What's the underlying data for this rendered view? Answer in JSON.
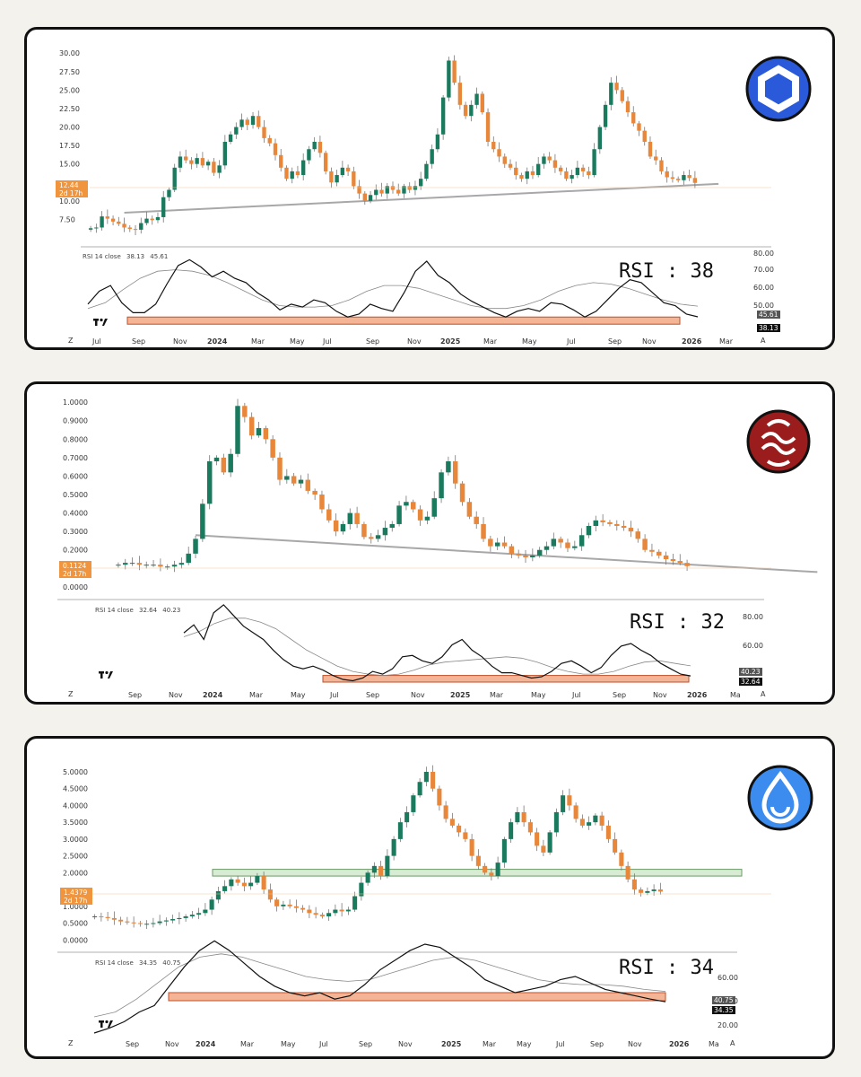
{
  "colors": {
    "up": "#1a7a5e",
    "down": "#e8863a",
    "rsi_band": "#f3b596",
    "rsi_band_stroke": "#c0502a",
    "trend": "#a8a8a8",
    "price_tag": "#f0953d",
    "zone": "#d8ecd4"
  },
  "panels": [
    {
      "coin_icon": "chainlink-hexagon-icon",
      "icon_colors": {
        "bg": "#2a5ada",
        "fg": "#ffffff"
      },
      "price_axis_ticks": [
        "30.00",
        "27.50",
        "25.00",
        "22.50",
        "20.00",
        "17.50",
        "15.00",
        "10.00",
        "7.50"
      ],
      "last_price_tag": {
        "price": "12.44",
        "time": "2d 17h"
      },
      "rsi_header": {
        "label": "RSI 14 close",
        "value1": "38.13",
        "value2": "45.61"
      },
      "rsi_axis_ticks": [
        "80.00",
        "70.00",
        "60.00",
        "50.00"
      ],
      "rsi_tags": {
        "ma": "45.61",
        "rsi": "38.13"
      },
      "rsi_annotation": "RSI : 38",
      "x_ticks": [
        "Jul",
        "Sep",
        "Nov",
        "2024",
        "Mar",
        "May",
        "Jul",
        "Sep",
        "Nov",
        "2025",
        "Mar",
        "May",
        "Jul",
        "Sep",
        "Nov",
        "2026",
        "Mar"
      ],
      "x_bold": [
        "2024",
        "2025",
        "2026"
      ],
      "corner_left": "Z",
      "corner_right": "A"
    },
    {
      "coin_icon": "sei-waves-icon",
      "icon_colors": {
        "bg": "#9b1c1c",
        "fg": "#ffffff"
      },
      "price_axis_ticks": [
        "1.0000",
        "0.9000",
        "0.8000",
        "0.7000",
        "0.6000",
        "0.5000",
        "0.4000",
        "0.3000",
        "0.2000",
        "0.0000"
      ],
      "last_price_tag": {
        "price": "0.1124",
        "time": "2d 17h"
      },
      "rsi_header": {
        "label": "RSI 14 close",
        "value1": "32.64",
        "value2": "40.23"
      },
      "rsi_axis_ticks": [
        "80.00",
        "60.00"
      ],
      "rsi_tags": {
        "ma": "40.23",
        "rsi": "32.64"
      },
      "rsi_annotation": "RSI : 32",
      "x_ticks": [
        "Sep",
        "Nov",
        "2024",
        "Mar",
        "May",
        "Jul",
        "Sep",
        "Nov",
        "2025",
        "Mar",
        "May",
        "Jul",
        "Sep",
        "Nov",
        "2026",
        "Ma"
      ],
      "x_bold": [
        "2024",
        "2025",
        "2026"
      ],
      "corner_left": "Z",
      "corner_right": "A"
    },
    {
      "coin_icon": "sui-droplet-icon",
      "icon_colors": {
        "bg": "#3c8cf0",
        "fg": "#ffffff"
      },
      "price_axis_ticks": [
        "5.0000",
        "4.5000",
        "4.0000",
        "3.5000",
        "3.0000",
        "2.5000",
        "2.0000",
        "1.0000",
        "0.5000",
        "0.0000"
      ],
      "last_price_tag": {
        "price": "1.4379",
        "time": "2d 17h"
      },
      "rsi_header": {
        "label": "RSI 14 close",
        "value1": "34.35",
        "value2": "40.75"
      },
      "rsi_axis_ticks": [
        "60.00",
        "40.00",
        "20.00"
      ],
      "rsi_axis_top_partial": "60.00",
      "rsi_tags": {
        "ma": "40.75",
        "rsi": "34.35"
      },
      "rsi_annotation": "RSI : 34",
      "x_ticks": [
        "Sep",
        "Nov",
        "2024",
        "Mar",
        "May",
        "Jul",
        "Sep",
        "Nov",
        "2025",
        "Mar",
        "May",
        "Jul",
        "Sep",
        "Nov",
        "2026",
        "Ma"
      ],
      "x_bold": [
        "2024",
        "2025",
        "2026"
      ],
      "corner_left": "Z",
      "corner_right": "A"
    }
  ],
  "chart_data": [
    {
      "type": "candlestick",
      "y_ticks": [
        7.5,
        10,
        12.5,
        15,
        17.5,
        20,
        22.5,
        25,
        27.5,
        30
      ],
      "ylim": [
        5,
        31
      ],
      "close_series": [
        6.3,
        6.4,
        7.9,
        7.6,
        7.2,
        6.9,
        6.4,
        6.2,
        6.1,
        7.0,
        7.6,
        7.4,
        7.8,
        10.5,
        11.5,
        14.5,
        16.0,
        15.5,
        15.0,
        15.8,
        14.8,
        15.3,
        13.8,
        14.8,
        18.0,
        19.0,
        20.0,
        21.0,
        20.3,
        21.5,
        20.0,
        18.5,
        17.8,
        16.2,
        14.5,
        13.0,
        14.0,
        13.5,
        15.5,
        17.0,
        18.0,
        16.5,
        14.0,
        12.5,
        13.5,
        14.5,
        14.0,
        12.0,
        11.0,
        10.0,
        10.8,
        11.5,
        11.0,
        12.0,
        11.5,
        11.0,
        12.0,
        11.5,
        12.0,
        13.0,
        15.0,
        17.0,
        19.0,
        24.0,
        29.0,
        26.0,
        23.0,
        21.5,
        23.0,
        24.5,
        22.0,
        18.0,
        17.0,
        16.0,
        15.0,
        14.5,
        13.5,
        13.0,
        14.0,
        13.5,
        15.0,
        16.0,
        15.5,
        14.5,
        14.0,
        13.0,
        13.5,
        14.5,
        14.0,
        13.5,
        17.0,
        20.0,
        23.0,
        26.0,
        25.0,
        23.5,
        22.0,
        20.5,
        19.5,
        18.0,
        16.0,
        15.5,
        14.0,
        13.2,
        13.0,
        12.8,
        13.5,
        13.1,
        12.44
      ],
      "trendline": [
        [
          6,
          8.4
        ],
        [
          109,
          12.3
        ]
      ],
      "rsi": [
        47,
        56,
        60,
        48,
        41,
        41,
        47,
        61,
        74,
        78,
        73,
        66,
        70,
        65,
        62,
        55,
        50,
        43,
        47,
        45,
        50,
        48,
        42,
        38,
        40,
        47,
        44,
        42,
        55,
        70,
        77,
        67,
        62,
        54,
        49,
        45,
        41,
        38,
        42,
        44,
        42,
        48,
        47,
        43,
        38,
        42,
        50,
        58,
        64,
        62,
        55,
        48,
        46,
        40,
        38.13
      ],
      "rsi_ma": [
        44,
        48,
        57,
        65,
        70,
        71,
        70,
        67,
        62,
        56,
        50,
        46,
        45,
        45,
        46,
        50,
        56,
        60,
        60,
        58,
        54,
        50,
        46,
        44,
        44,
        46,
        50,
        56,
        60,
        62,
        61,
        58,
        54,
        50,
        47,
        45.61
      ],
      "rsi_ylim": [
        30,
        82
      ],
      "rsi_oversold_band": [
        33,
        38
      ]
    },
    {
      "type": "candlestick",
      "y_ticks": [
        0,
        0.2,
        0.3,
        0.4,
        0.5,
        0.6,
        0.7,
        0.8,
        0.9,
        1.0
      ],
      "ylim": [
        -0.02,
        1.03
      ],
      "close_series": [
        0.12,
        0.13,
        0.13,
        0.12,
        0.12,
        0.12,
        0.11,
        0.11,
        0.12,
        0.13,
        0.18,
        0.26,
        0.45,
        0.68,
        0.7,
        0.62,
        0.72,
        0.98,
        0.92,
        0.82,
        0.86,
        0.8,
        0.7,
        0.58,
        0.6,
        0.56,
        0.58,
        0.52,
        0.5,
        0.42,
        0.36,
        0.3,
        0.34,
        0.4,
        0.34,
        0.27,
        0.26,
        0.28,
        0.32,
        0.34,
        0.44,
        0.46,
        0.42,
        0.36,
        0.38,
        0.48,
        0.62,
        0.68,
        0.56,
        0.46,
        0.38,
        0.34,
        0.26,
        0.22,
        0.24,
        0.22,
        0.18,
        0.17,
        0.16,
        0.17,
        0.2,
        0.22,
        0.26,
        0.24,
        0.21,
        0.22,
        0.28,
        0.33,
        0.36,
        0.35,
        0.34,
        0.33,
        0.32,
        0.3,
        0.26,
        0.2,
        0.19,
        0.17,
        0.15,
        0.14,
        0.13,
        0.1124
      ],
      "trendline": [
        [
          11,
          0.28
        ],
        [
          97,
          0.08
        ]
      ],
      "rsi": [
        65,
        71,
        60,
        80,
        86,
        78,
        70,
        65,
        60,
        52,
        45,
        40,
        38,
        40,
        37,
        33,
        30,
        29,
        31,
        36,
        34,
        38,
        47,
        48,
        44,
        42,
        47,
        56,
        60,
        52,
        47,
        40,
        35,
        35,
        33,
        31,
        32,
        36,
        42,
        44,
        40,
        35,
        39,
        48,
        55,
        57,
        52,
        48,
        42,
        38,
        34,
        32.64
      ],
      "rsi_ma": [
        62,
        66,
        72,
        76,
        76,
        73,
        68,
        60,
        52,
        46,
        40,
        36,
        34,
        33,
        34,
        37,
        41,
        43,
        44,
        45,
        46,
        47,
        46,
        43,
        39,
        36,
        34,
        34,
        36,
        40,
        43,
        44,
        42,
        40.23
      ],
      "rsi_ylim": [
        28,
        90
      ],
      "rsi_oversold_band": [
        28,
        33
      ]
    },
    {
      "type": "candlestick",
      "y_ticks": [
        0,
        0.5,
        1.0,
        1.5,
        2.0,
        2.5,
        3.0,
        3.5,
        4.0,
        4.5,
        5.0
      ],
      "ylim": [
        -0.1,
        5.4
      ],
      "close_series": [
        0.7,
        0.68,
        0.65,
        0.6,
        0.55,
        0.52,
        0.5,
        0.48,
        0.48,
        0.5,
        0.55,
        0.58,
        0.62,
        0.65,
        0.7,
        0.75,
        0.8,
        0.9,
        1.2,
        1.45,
        1.6,
        1.8,
        1.7,
        1.6,
        1.7,
        1.9,
        1.5,
        1.2,
        1.0,
        1.05,
        1.0,
        0.95,
        0.9,
        0.8,
        0.75,
        0.7,
        0.8,
        0.9,
        0.85,
        0.9,
        1.3,
        1.7,
        2.0,
        2.2,
        1.9,
        2.5,
        3.0,
        3.5,
        3.8,
        4.3,
        4.7,
        5.0,
        4.5,
        4.0,
        3.6,
        3.4,
        3.2,
        3.0,
        2.5,
        2.2,
        2.0,
        1.9,
        2.3,
        3.0,
        3.5,
        3.8,
        3.5,
        3.2,
        2.8,
        2.6,
        3.2,
        3.8,
        4.3,
        4.0,
        3.6,
        3.4,
        3.5,
        3.7,
        3.4,
        3.0,
        2.6,
        2.2,
        1.8,
        1.5,
        1.4,
        1.45,
        1.5,
        1.4379
      ],
      "support_zone": [
        1.9,
        2.1
      ],
      "rsi": [
        15,
        18,
        22,
        28,
        32,
        44,
        56,
        66,
        72,
        66,
        58,
        50,
        44,
        40,
        38,
        40,
        36,
        38,
        45,
        54,
        60,
        66,
        70,
        68,
        62,
        56,
        48,
        44,
        40,
        42,
        44,
        48,
        50,
        46,
        42,
        40,
        38,
        36,
        34.35
      ],
      "rsi_ma": [
        25,
        28,
        36,
        46,
        56,
        62,
        64,
        62,
        58,
        54,
        50,
        48,
        47,
        48,
        52,
        56,
        60,
        62,
        60,
        56,
        52,
        48,
        46,
        45,
        45,
        44,
        42,
        40.75
      ],
      "rsi_ylim": [
        15,
        65
      ],
      "rsi_oversold_band": [
        35,
        40
      ]
    }
  ]
}
